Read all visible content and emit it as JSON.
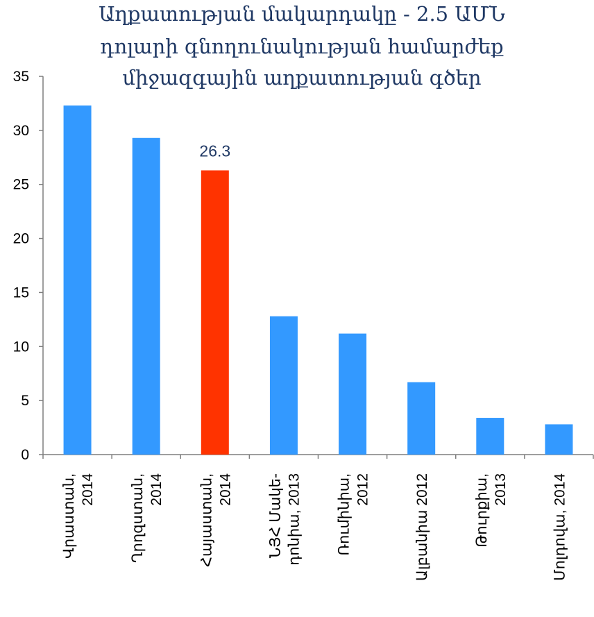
{
  "chart_data": {
    "type": "bar",
    "title_lines": [
      "Աղքատության մակարդակը - 2.5 ԱՄՆ",
      "դոլարի գնողունակության համարժեք",
      "միջազգային աղքատության գծեր"
    ],
    "categories": [
      [
        "Վրաստան,",
        "2014"
      ],
      [
        "Ղրղզստան,",
        "2014"
      ],
      [
        "Հայաստան,",
        "2014"
      ],
      [
        "ՆՅՀ Մակե-",
        "դոնիա, 2013"
      ],
      [
        "Ռումինիա,",
        "2012"
      ],
      [
        "Ալբանիա 2012"
      ],
      [
        "Թուրքիա,",
        "2013"
      ],
      [
        "Մոլդովա, 2014"
      ]
    ],
    "values": [
      32.3,
      29.3,
      26.3,
      12.8,
      11.2,
      6.7,
      3.4,
      2.8
    ],
    "data_labels": [
      "",
      "",
      "26.3",
      "",
      "",
      "",
      "",
      ""
    ],
    "colors": [
      "#3399ff",
      "#3399ff",
      "#ff3300",
      "#3399ff",
      "#3399ff",
      "#3399ff",
      "#3399ff",
      "#3399ff"
    ],
    "yticks": [
      "0",
      "5",
      "10",
      "15",
      "20",
      "25",
      "30",
      "35"
    ],
    "ylim": [
      0,
      35
    ],
    "grid": false,
    "xlabel": "",
    "ylabel": ""
  }
}
